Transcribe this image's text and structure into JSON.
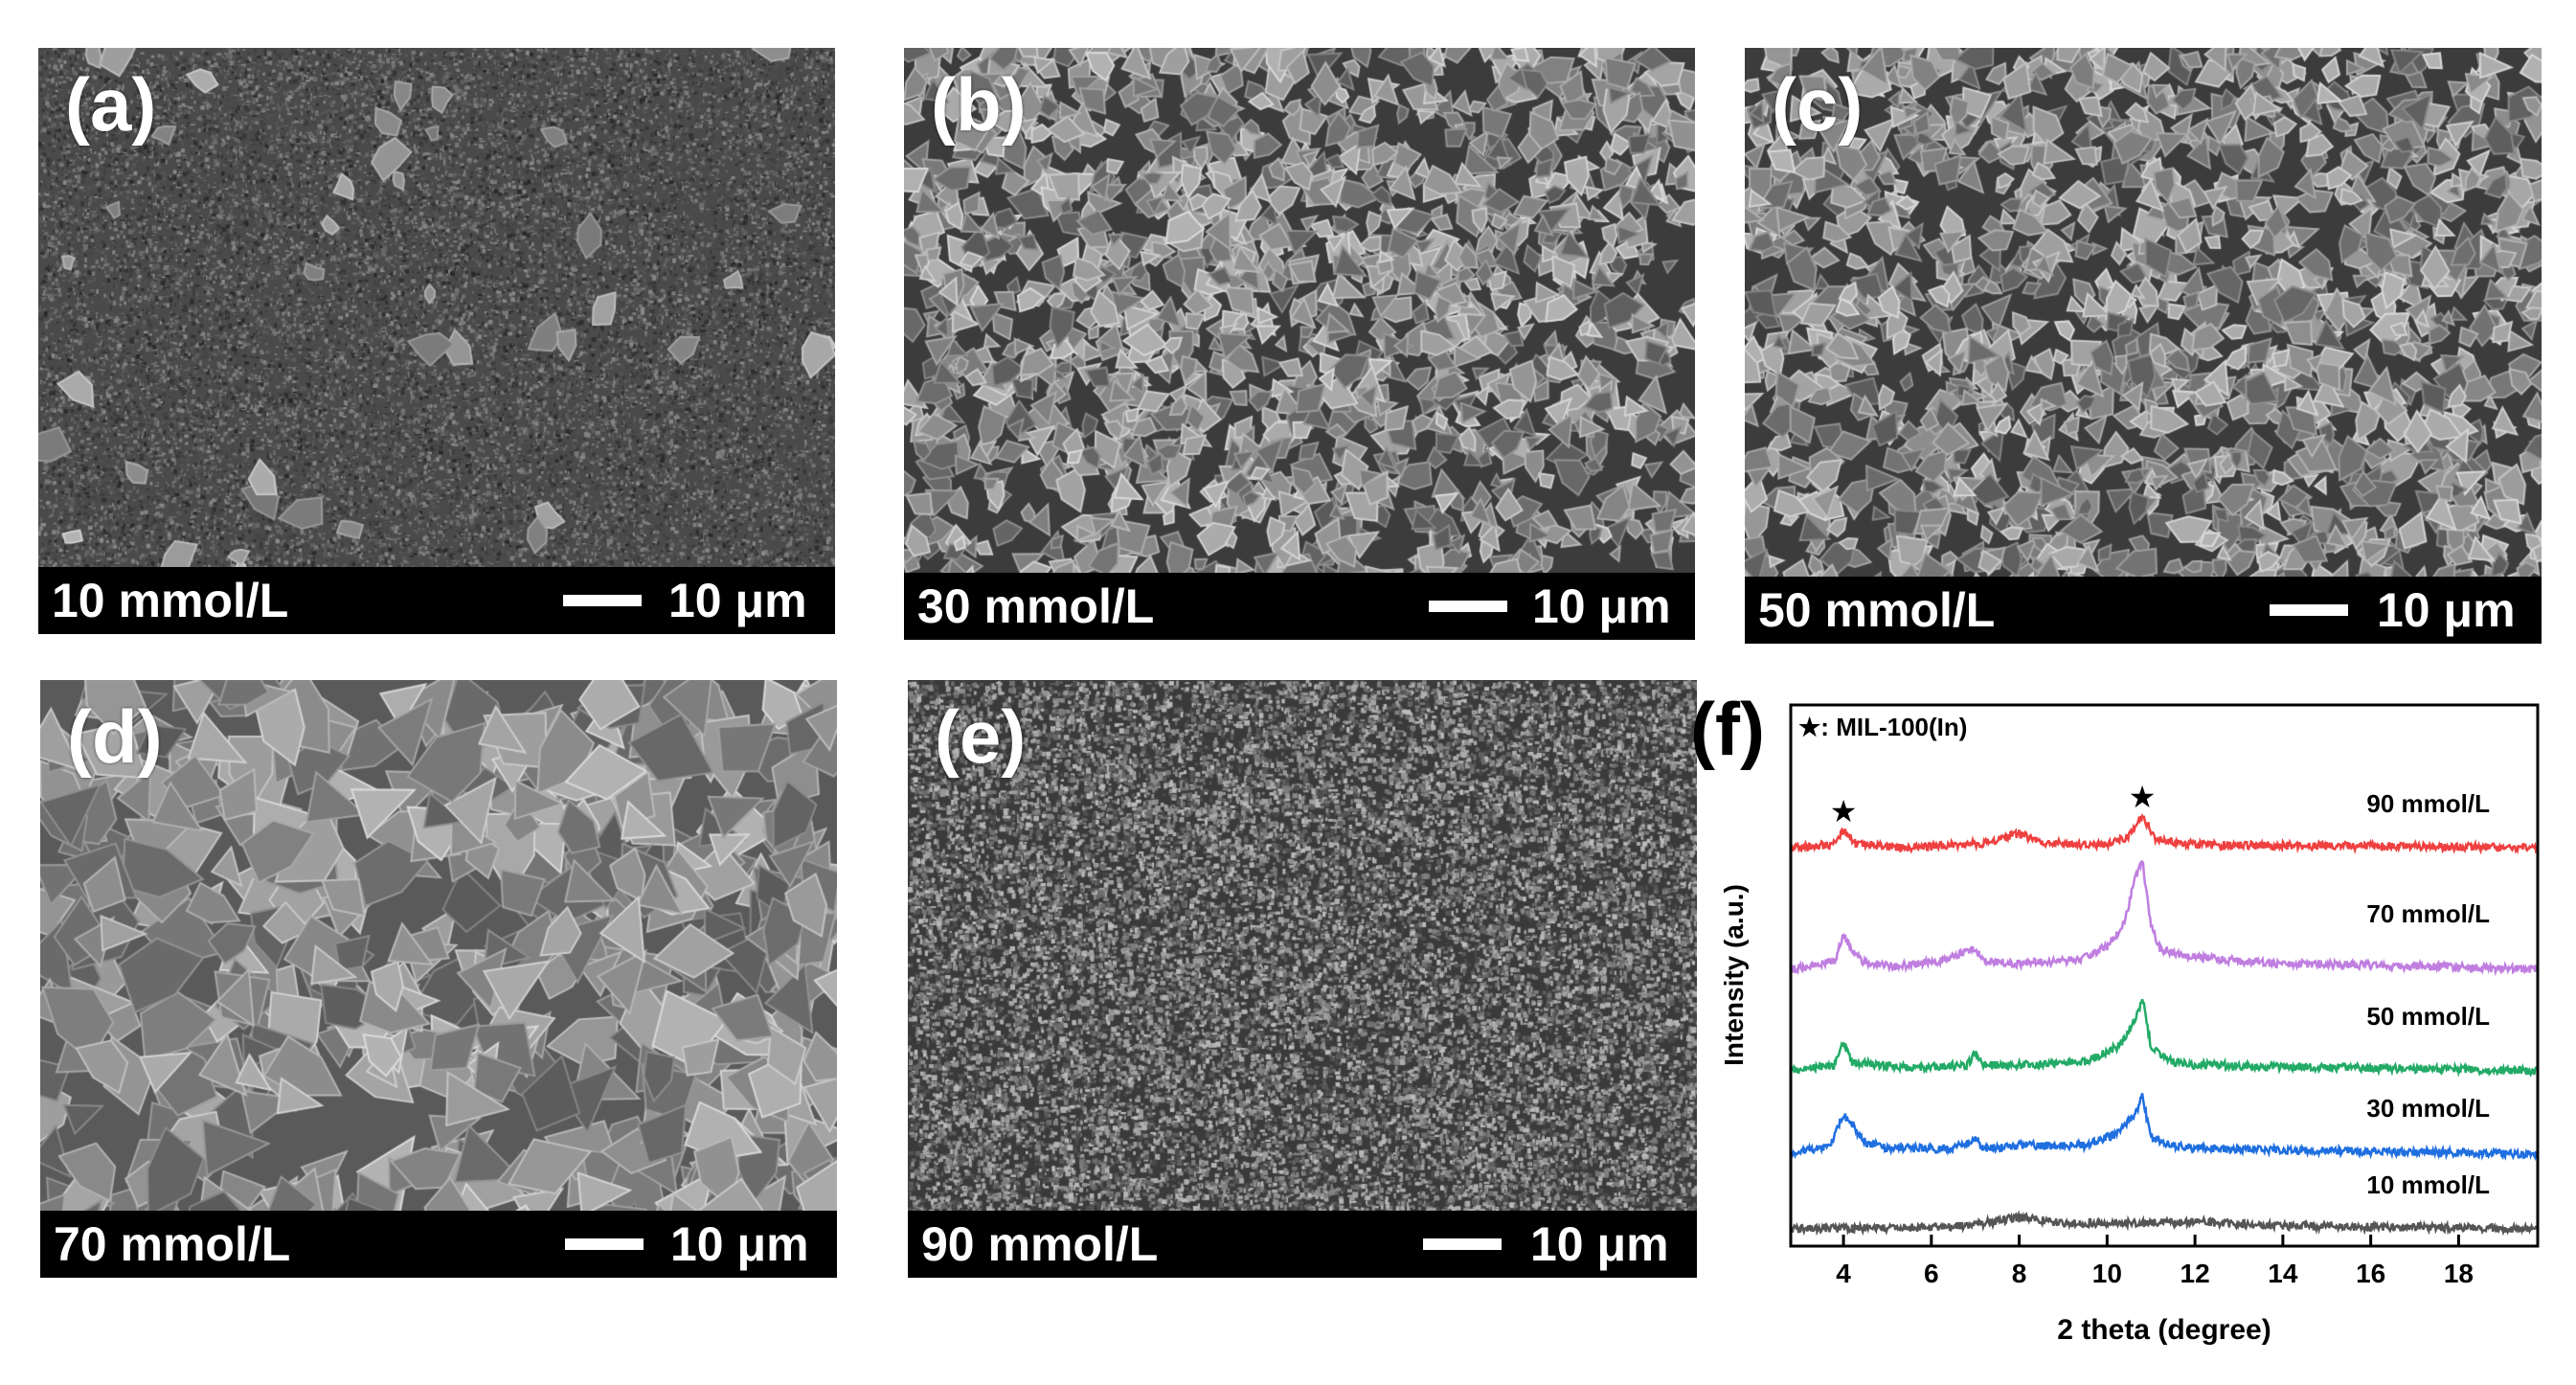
{
  "sem_panels": [
    {
      "id": "a",
      "label": "(a)",
      "concentration": "10 mmol/L",
      "scale": "10 μm",
      "morphology": "sparse-crystals"
    },
    {
      "id": "b",
      "label": "(b)",
      "concentration": "30 mmol/L",
      "scale": "10 μm",
      "morphology": "dense-crystals"
    },
    {
      "id": "c",
      "label": "(c)",
      "concentration": "50 mmol/L",
      "scale": "10 μm",
      "morphology": "dense-crystals"
    },
    {
      "id": "d",
      "label": "(d)",
      "concentration": "70 mmol/L",
      "scale": "10 μm",
      "morphology": "large-facets"
    },
    {
      "id": "e",
      "label": "(e)",
      "concentration": "90 mmol/L",
      "scale": "10 μm",
      "morphology": "fine-grain"
    }
  ],
  "xrd_panel": {
    "label": "(f)",
    "legend": "★: MIL-100(In)",
    "xlabel": "2 theta (degree)",
    "ylabel": "Intensity (a.u.)"
  },
  "chart_data": {
    "type": "line",
    "xlim": [
      2.8,
      19.8
    ],
    "xticks": [
      4,
      6,
      8,
      10,
      12,
      14,
      16,
      18
    ],
    "ytick_labels": false,
    "grid": false,
    "peak_markers": [
      4.0,
      10.8
    ],
    "series": [
      {
        "name": "90 mmol/L",
        "color": "#ef4040",
        "points": [
          [
            2.8,
            0
          ],
          [
            3.7,
            0.1
          ],
          [
            4.0,
            0.6
          ],
          [
            4.3,
            0.1
          ],
          [
            5.5,
            0
          ],
          [
            7.2,
            0.15
          ],
          [
            8.0,
            0.5
          ],
          [
            8.5,
            0.15
          ],
          [
            10.0,
            0.1
          ],
          [
            10.5,
            0.4
          ],
          [
            10.8,
            1.1
          ],
          [
            11.1,
            0.3
          ],
          [
            12.0,
            0.1
          ],
          [
            19.8,
            0
          ]
        ]
      },
      {
        "name": "70 mmol/L",
        "color": "#c07ee0",
        "points": [
          [
            2.8,
            0
          ],
          [
            3.8,
            0.3
          ],
          [
            4.0,
            1.2
          ],
          [
            4.2,
            0.7
          ],
          [
            4.5,
            0.2
          ],
          [
            5.2,
            0.1
          ],
          [
            6.2,
            0.3
          ],
          [
            7.0,
            0.7
          ],
          [
            7.2,
            0.3
          ],
          [
            8.0,
            0.2
          ],
          [
            9.0,
            0.3
          ],
          [
            9.5,
            0.4
          ],
          [
            10.0,
            0.8
          ],
          [
            10.4,
            1.6
          ],
          [
            10.6,
            3.0
          ],
          [
            10.8,
            3.8
          ],
          [
            11.0,
            1.5
          ],
          [
            11.2,
            0.7
          ],
          [
            12.0,
            0.4
          ],
          [
            13.0,
            0.3
          ],
          [
            14.0,
            0.2
          ],
          [
            16.0,
            0.15
          ],
          [
            19.8,
            0
          ]
        ]
      },
      {
        "name": "50 mmol/L",
        "color": "#22aa66",
        "points": [
          [
            2.8,
            0
          ],
          [
            3.8,
            0.2
          ],
          [
            4.0,
            1.0
          ],
          [
            4.2,
            0.3
          ],
          [
            5.5,
            0.1
          ],
          [
            6.8,
            0.2
          ],
          [
            7.0,
            0.6
          ],
          [
            7.2,
            0.2
          ],
          [
            8.0,
            0.2
          ],
          [
            9.5,
            0.3
          ],
          [
            10.3,
            0.9
          ],
          [
            10.7,
            2.0
          ],
          [
            10.8,
            2.6
          ],
          [
            11.0,
            0.8
          ],
          [
            11.5,
            0.3
          ],
          [
            12.0,
            0.2
          ],
          [
            19.8,
            0
          ]
        ]
      },
      {
        "name": "30 mmol/L",
        "color": "#1f6fe0",
        "points": [
          [
            2.8,
            0
          ],
          [
            3.7,
            0.3
          ],
          [
            4.0,
            1.4
          ],
          [
            4.2,
            1.0
          ],
          [
            4.5,
            0.4
          ],
          [
            5.0,
            0.2
          ],
          [
            6.5,
            0.2
          ],
          [
            7.0,
            0.5
          ],
          [
            7.2,
            0.2
          ],
          [
            8.0,
            0.3
          ],
          [
            9.5,
            0.3
          ],
          [
            10.2,
            0.7
          ],
          [
            10.6,
            1.3
          ],
          [
            10.8,
            2.0
          ],
          [
            11.0,
            0.6
          ],
          [
            11.5,
            0.3
          ],
          [
            12.0,
            0.2
          ],
          [
            19.8,
            0
          ]
        ]
      },
      {
        "name": "10 mmol/L",
        "color": "#555555",
        "points": [
          [
            2.8,
            0
          ],
          [
            6.0,
            0.05
          ],
          [
            7.0,
            0.15
          ],
          [
            8.0,
            0.4
          ],
          [
            9.0,
            0.2
          ],
          [
            10.8,
            0.2
          ],
          [
            12.0,
            0.25
          ],
          [
            14.0,
            0.1
          ],
          [
            19.8,
            0
          ]
        ]
      }
    ]
  }
}
